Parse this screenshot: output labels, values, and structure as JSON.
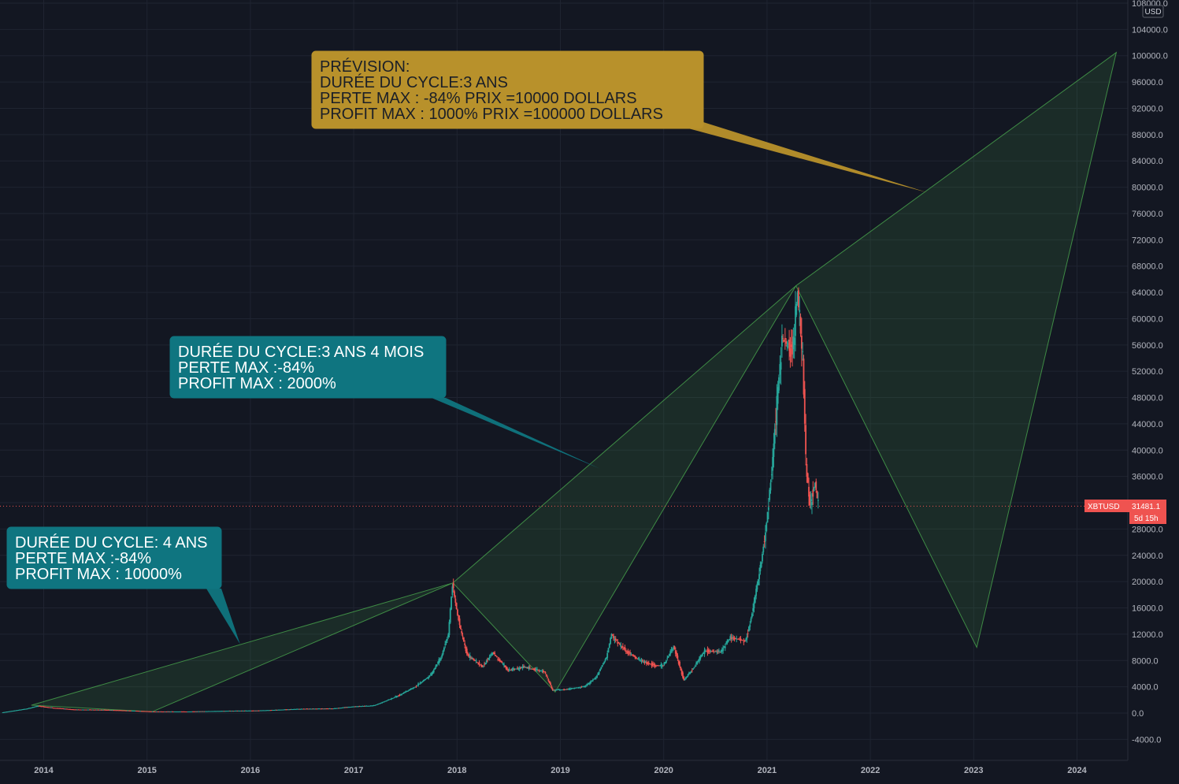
{
  "chart_data": {
    "type": "line",
    "symbol": "XBTUSD",
    "currency": "USD",
    "last_price": "31481.1",
    "countdown": "5d 15h",
    "x_tick_labels": [
      "2014",
      "2015",
      "2016",
      "2017",
      "2018",
      "2019",
      "2020",
      "2021",
      "2022",
      "2023",
      "2024"
    ],
    "y_tick_labels": [
      "108000.0",
      "104000.0",
      "100000.0",
      "96000.0",
      "92000.0",
      "88000.0",
      "84000.0",
      "80000.0",
      "76000.0",
      "72000.0",
      "68000.0",
      "64000.0",
      "60000.0",
      "56000.0",
      "52000.0",
      "48000.0",
      "44000.0",
      "40000.0",
      "36000.0",
      "32000.0",
      "28000.0",
      "24000.0",
      "20000.0",
      "16000.0",
      "12000.0",
      "8000.0",
      "4000.0",
      "0.0",
      "-4000.0"
    ],
    "ylim": [
      -4000,
      108000
    ],
    "xlim": [
      2013.6,
      2024.8
    ],
    "grid": true,
    "price_series": {
      "name": "XBTUSD",
      "points": [
        [
          2013.6,
          100
        ],
        [
          2013.85,
          700
        ],
        [
          2013.95,
          1100
        ],
        [
          2014.1,
          800
        ],
        [
          2014.3,
          550
        ],
        [
          2014.6,
          500
        ],
        [
          2014.9,
          350
        ],
        [
          2015.05,
          250
        ],
        [
          2015.4,
          240
        ],
        [
          2015.8,
          350
        ],
        [
          2016.1,
          400
        ],
        [
          2016.5,
          650
        ],
        [
          2016.8,
          700
        ],
        [
          2017.0,
          1000
        ],
        [
          2017.2,
          1150
        ],
        [
          2017.4,
          2400
        ],
        [
          2017.6,
          4000
        ],
        [
          2017.75,
          5800
        ],
        [
          2017.85,
          8500
        ],
        [
          2017.92,
          12000
        ],
        [
          2017.96,
          19500
        ],
        [
          2018.02,
          14000
        ],
        [
          2018.1,
          9000
        ],
        [
          2018.25,
          7000
        ],
        [
          2018.35,
          9200
        ],
        [
          2018.5,
          6500
        ],
        [
          2018.65,
          7000
        ],
        [
          2018.85,
          6300
        ],
        [
          2018.93,
          3500
        ],
        [
          2019.05,
          3600
        ],
        [
          2019.25,
          4100
        ],
        [
          2019.35,
          5500
        ],
        [
          2019.45,
          8500
        ],
        [
          2019.5,
          12000
        ],
        [
          2019.6,
          10000
        ],
        [
          2019.75,
          8200
        ],
        [
          2019.9,
          7300
        ],
        [
          2020.0,
          7200
        ],
        [
          2020.1,
          10200
        ],
        [
          2020.2,
          5000
        ],
        [
          2020.3,
          7000
        ],
        [
          2020.4,
          9500
        ],
        [
          2020.55,
          9300
        ],
        [
          2020.65,
          11500
        ],
        [
          2020.8,
          11000
        ],
        [
          2020.87,
          16000
        ],
        [
          2020.95,
          23000
        ],
        [
          2021.0,
          29000
        ],
        [
          2021.05,
          37000
        ],
        [
          2021.1,
          47000
        ],
        [
          2021.15,
          57000
        ],
        [
          2021.25,
          55000
        ],
        [
          2021.3,
          64000
        ],
        [
          2021.35,
          54000
        ],
        [
          2021.38,
          38000
        ],
        [
          2021.42,
          32000
        ],
        [
          2021.47,
          35000
        ],
        [
          2021.5,
          31481
        ]
      ],
      "up_color": "#26a69a",
      "down_color": "#ef5350"
    },
    "patterns": [
      {
        "points": [
          [
            2013.88,
            1200
          ],
          [
            2017.96,
            19800
          ],
          [
            2015.05,
            200
          ]
        ]
      },
      {
        "points": [
          [
            2017.96,
            19800
          ],
          [
            2021.28,
            65000
          ],
          [
            2018.95,
            3200
          ]
        ]
      },
      {
        "points": [
          [
            2021.28,
            65000
          ],
          [
            2024.38,
            100500
          ],
          [
            2023.03,
            10000
          ]
        ]
      }
    ],
    "pattern_color": "#4caf50",
    "callouts": [
      {
        "lines": [
          "DURÉE DU CYCLE: 4 ANS",
          "PERTE MAX :-84%",
          "PROFIT MAX : 10000%"
        ],
        "bg": "#0f7580",
        "text_color": "#ffffff",
        "anchor": [
          2015.9,
          10500
        ]
      },
      {
        "lines": [
          "DURÉE DU CYCLE:3 ANS 4 MOIS",
          "PERTE MAX :-84%",
          "PROFIT MAX : 2000%"
        ],
        "bg": "#0f7580",
        "text_color": "#ffffff",
        "anchor": [
          2019.38,
          37200
        ]
      },
      {
        "lines": [
          "PRÉVISION:",
          "DURÉE DU CYCLE:3 ANS",
          "PERTE MAX : -84% PRIX =10000 DOLLARS",
          "PROFIT MAX : 1000% PRIX =100000 DOLLARS"
        ],
        "bg": "#b8912b",
        "text_color": "#1b1f27",
        "anchor": [
          2022.55,
          79200
        ]
      }
    ],
    "background": "#131722",
    "grid_color": "#1f2431"
  }
}
